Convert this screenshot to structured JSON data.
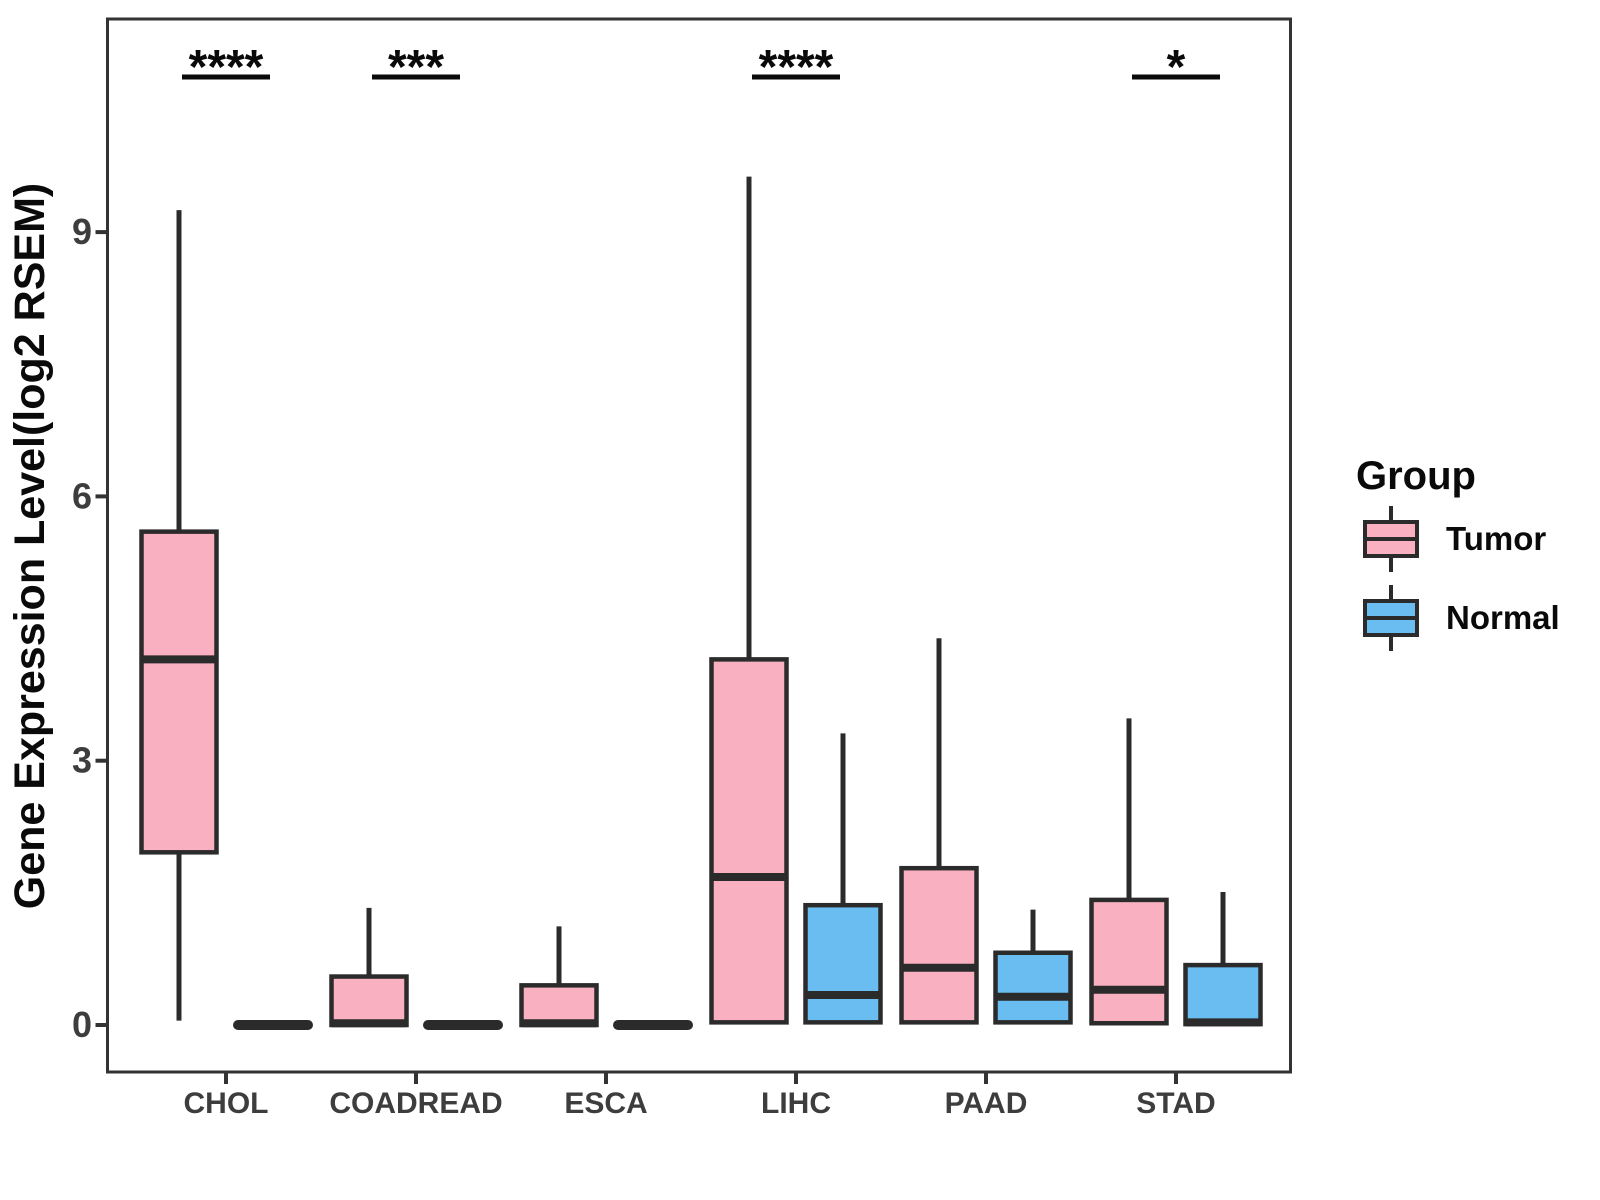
{
  "chart_data": {
    "type": "box",
    "title": "",
    "ylabel": "Gene Expression Level(log2 RSEM)",
    "xlabel": "",
    "yticks": [
      0,
      3,
      6,
      9
    ],
    "ylim": [
      -0.55,
      11.45
    ],
    "grid": false,
    "legend_position": "right",
    "categories": [
      "CHOL",
      "COADREAD",
      "ESCA",
      "LIHC",
      "PAAD",
      "STAD"
    ],
    "groups": [
      {
        "name": "Tumor",
        "color": "#F9B0C1"
      },
      {
        "name": "Normal",
        "color": "#6ABDF0"
      }
    ],
    "legend": {
      "title": "Group",
      "items": [
        "Tumor",
        "Normal"
      ]
    },
    "significance": [
      {
        "category": "CHOL",
        "label": "****"
      },
      {
        "category": "COADREAD",
        "label": "***"
      },
      {
        "category": "LIHC",
        "label": "****"
      },
      {
        "category": "STAD",
        "label": "*"
      }
    ],
    "boxes": [
      {
        "category": "CHOL",
        "group": "Tumor",
        "whisker_low": 0.05,
        "q1": 1.96,
        "median": 4.15,
        "q3": 5.6,
        "whisker_high": 9.25
      },
      {
        "category": "CHOL",
        "group": "Normal",
        "whisker_low": 0,
        "q1": 0,
        "median": 0,
        "q3": 0,
        "whisker_high": 0
      },
      {
        "category": "COADREAD",
        "group": "Tumor",
        "whisker_low": 0,
        "q1": 0,
        "median": 0.02,
        "q3": 0.55,
        "whisker_high": 1.33
      },
      {
        "category": "COADREAD",
        "group": "Normal",
        "whisker_low": 0,
        "q1": 0,
        "median": 0,
        "q3": 0,
        "whisker_high": 0
      },
      {
        "category": "ESCA",
        "group": "Tumor",
        "whisker_low": 0,
        "q1": 0,
        "median": 0.02,
        "q3": 0.45,
        "whisker_high": 1.12
      },
      {
        "category": "ESCA",
        "group": "Normal",
        "whisker_low": 0,
        "q1": 0,
        "median": 0,
        "q3": 0,
        "whisker_high": 0
      },
      {
        "category": "LIHC",
        "group": "Tumor",
        "whisker_low": 0.02,
        "q1": 0.03,
        "median": 1.68,
        "q3": 4.15,
        "whisker_high": 9.63
      },
      {
        "category": "LIHC",
        "group": "Normal",
        "whisker_low": 0.02,
        "q1": 0.03,
        "median": 0.34,
        "q3": 1.36,
        "whisker_high": 3.31
      },
      {
        "category": "PAAD",
        "group": "Tumor",
        "whisker_low": 0.02,
        "q1": 0.03,
        "median": 0.65,
        "q3": 1.78,
        "whisker_high": 4.39
      },
      {
        "category": "PAAD",
        "group": "Normal",
        "whisker_low": 0.02,
        "q1": 0.03,
        "median": 0.32,
        "q3": 0.82,
        "whisker_high": 1.31
      },
      {
        "category": "STAD",
        "group": "Tumor",
        "whisker_low": 0.01,
        "q1": 0.02,
        "median": 0.4,
        "q3": 1.42,
        "whisker_high": 3.48
      },
      {
        "category": "STAD",
        "group": "Normal",
        "whisker_low": 0,
        "q1": 0.01,
        "median": 0.03,
        "q3": 0.68,
        "whisker_high": 1.51
      }
    ],
    "colors": {
      "box_stroke": "#2B2B2B",
      "panel_border": "#333333",
      "tick_text": "#3D3D3D",
      "title_text": "#0A0A0A",
      "background": "#FFFFFF"
    }
  }
}
